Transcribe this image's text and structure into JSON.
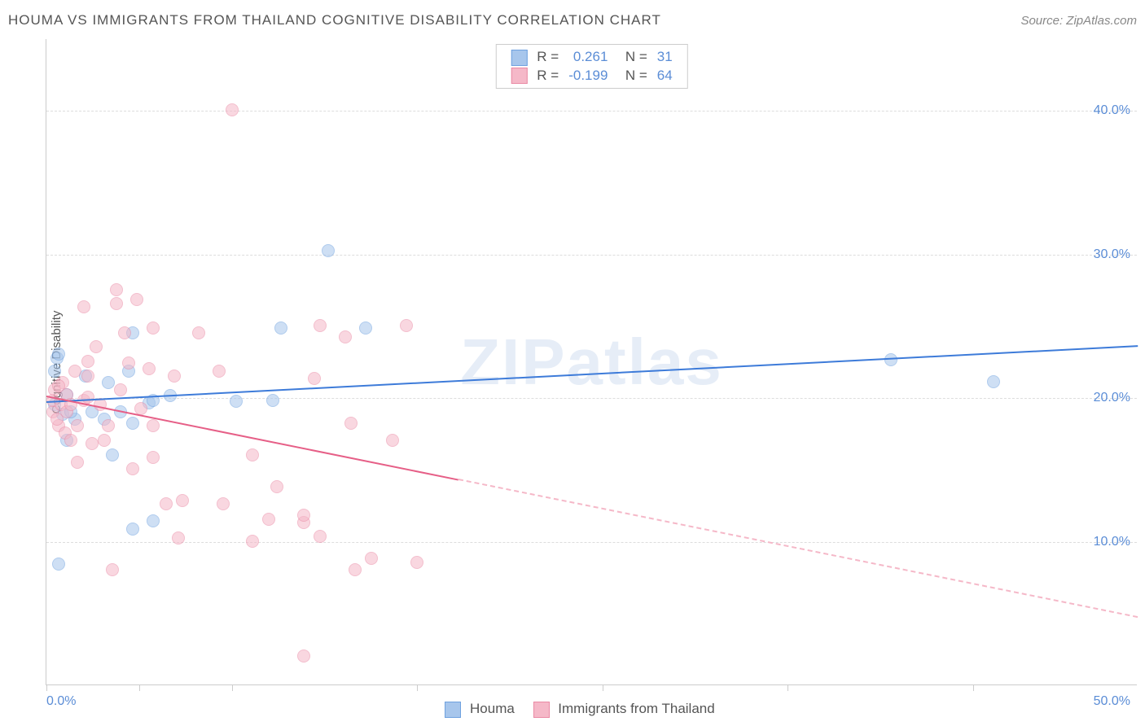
{
  "title": "HOUMA VS IMMIGRANTS FROM THAILAND COGNITIVE DISABILITY CORRELATION CHART",
  "source": "Source: ZipAtlas.com",
  "ylabel": "Cognitive Disability",
  "watermark": "ZIPatlas",
  "chart": {
    "type": "scatter",
    "xlim": [
      0,
      53
    ],
    "ylim": [
      0,
      45
    ],
    "xticks": [
      0,
      4.5,
      9,
      18,
      27,
      36,
      45
    ],
    "xtick_labels": {
      "0": "0.0%",
      "50": "50.0%"
    },
    "yticks": [
      10,
      20,
      30,
      40
    ],
    "ytick_labels": {
      "10": "10.0%",
      "20": "20.0%",
      "30": "30.0%",
      "40": "40.0%"
    },
    "grid_color": "#dddddd",
    "background_color": "#ffffff",
    "point_radius": 8,
    "point_opacity": 0.55
  },
  "series": [
    {
      "name": "Houma",
      "color_fill": "#a7c6ec",
      "color_stroke": "#6fa1df",
      "trend_color": "#3d7bd9",
      "legend_R": "0.261",
      "legend_N": "31",
      "trend": {
        "x1": 0,
        "y1": 19.8,
        "x2": 53,
        "y2": 23.7,
        "dash_from": null
      },
      "points": [
        [
          0.4,
          21.8
        ],
        [
          0.5,
          22.7
        ],
        [
          0.6,
          23.0
        ],
        [
          1.0,
          20.2
        ],
        [
          0.8,
          18.8
        ],
        [
          1.0,
          17.0
        ],
        [
          1.4,
          18.5
        ],
        [
          2.8,
          18.5
        ],
        [
          3.6,
          19.0
        ],
        [
          4.2,
          24.5
        ],
        [
          5.0,
          19.6
        ],
        [
          4.2,
          18.2
        ],
        [
          4.2,
          10.8
        ],
        [
          6.0,
          20.1
        ],
        [
          9.2,
          19.7
        ],
        [
          11.0,
          19.8
        ],
        [
          11.4,
          24.8
        ],
        [
          15.5,
          24.8
        ],
        [
          13.7,
          30.2
        ],
        [
          5.2,
          11.4
        ],
        [
          3.2,
          16.0
        ],
        [
          0.6,
          8.4
        ],
        [
          0.4,
          19.5
        ],
        [
          1.2,
          19.0
        ],
        [
          1.9,
          21.5
        ],
        [
          2.2,
          19.0
        ],
        [
          3.0,
          21.0
        ],
        [
          4.0,
          21.8
        ],
        [
          5.2,
          19.8
        ],
        [
          41.0,
          22.6
        ],
        [
          46.0,
          21.1
        ]
      ]
    },
    {
      "name": "Immigrants from Thailand",
      "color_fill": "#f5b8c8",
      "color_stroke": "#ea8aa5",
      "trend_color": "#e65f87",
      "legend_R": "-0.199",
      "legend_N": "64",
      "trend": {
        "x1": 0,
        "y1": 20.2,
        "x2": 53,
        "y2": 4.8,
        "dash_from": 20
      },
      "points": [
        [
          0.3,
          19.0
        ],
        [
          0.3,
          19.8
        ],
        [
          0.4,
          20.5
        ],
        [
          0.6,
          18.0
        ],
        [
          0.7,
          19.5
        ],
        [
          0.8,
          21.0
        ],
        [
          0.9,
          17.5
        ],
        [
          1.0,
          19.0
        ],
        [
          1.0,
          20.2
        ],
        [
          1.2,
          17.0
        ],
        [
          1.2,
          19.5
        ],
        [
          1.4,
          21.8
        ],
        [
          1.5,
          18.0
        ],
        [
          1.5,
          15.5
        ],
        [
          1.8,
          19.8
        ],
        [
          1.8,
          26.3
        ],
        [
          2.0,
          21.5
        ],
        [
          2.0,
          22.5
        ],
        [
          2.0,
          20.0
        ],
        [
          2.2,
          16.8
        ],
        [
          2.4,
          23.5
        ],
        [
          2.6,
          19.5
        ],
        [
          2.8,
          17.0
        ],
        [
          3.0,
          18.0
        ],
        [
          3.4,
          26.5
        ],
        [
          3.4,
          27.5
        ],
        [
          3.6,
          20.5
        ],
        [
          3.8,
          24.5
        ],
        [
          4.0,
          22.4
        ],
        [
          4.2,
          15.0
        ],
        [
          4.4,
          26.8
        ],
        [
          4.6,
          19.2
        ],
        [
          5.0,
          22.0
        ],
        [
          5.2,
          24.8
        ],
        [
          5.2,
          15.8
        ],
        [
          5.2,
          18.0
        ],
        [
          5.8,
          12.6
        ],
        [
          6.2,
          21.5
        ],
        [
          6.4,
          10.2
        ],
        [
          6.6,
          12.8
        ],
        [
          7.4,
          24.5
        ],
        [
          8.4,
          21.8
        ],
        [
          8.6,
          12.6
        ],
        [
          9.0,
          40.0
        ],
        [
          10.0,
          16.0
        ],
        [
          10.0,
          10.0
        ],
        [
          10.8,
          11.5
        ],
        [
          11.2,
          13.8
        ],
        [
          12.5,
          11.3
        ],
        [
          12.5,
          11.8
        ],
        [
          12.5,
          2.0
        ],
        [
          13.0,
          21.3
        ],
        [
          13.3,
          25.0
        ],
        [
          13.3,
          10.3
        ],
        [
          14.8,
          18.2
        ],
        [
          17.5,
          25.0
        ],
        [
          14.5,
          24.2
        ],
        [
          15.8,
          8.8
        ],
        [
          16.8,
          17.0
        ],
        [
          18.0,
          8.5
        ],
        [
          15.0,
          8.0
        ],
        [
          3.2,
          8.0
        ],
        [
          0.5,
          18.5
        ],
        [
          0.6,
          20.8
        ]
      ]
    }
  ],
  "bottom_legend": [
    {
      "label": "Houma",
      "fill": "#a7c6ec",
      "stroke": "#6fa1df"
    },
    {
      "label": "Immigrants from Thailand",
      "fill": "#f5b8c8",
      "stroke": "#ea8aa5"
    }
  ],
  "legend_cols": {
    "R_label": "R",
    "N_label": "N",
    "eq": "="
  }
}
